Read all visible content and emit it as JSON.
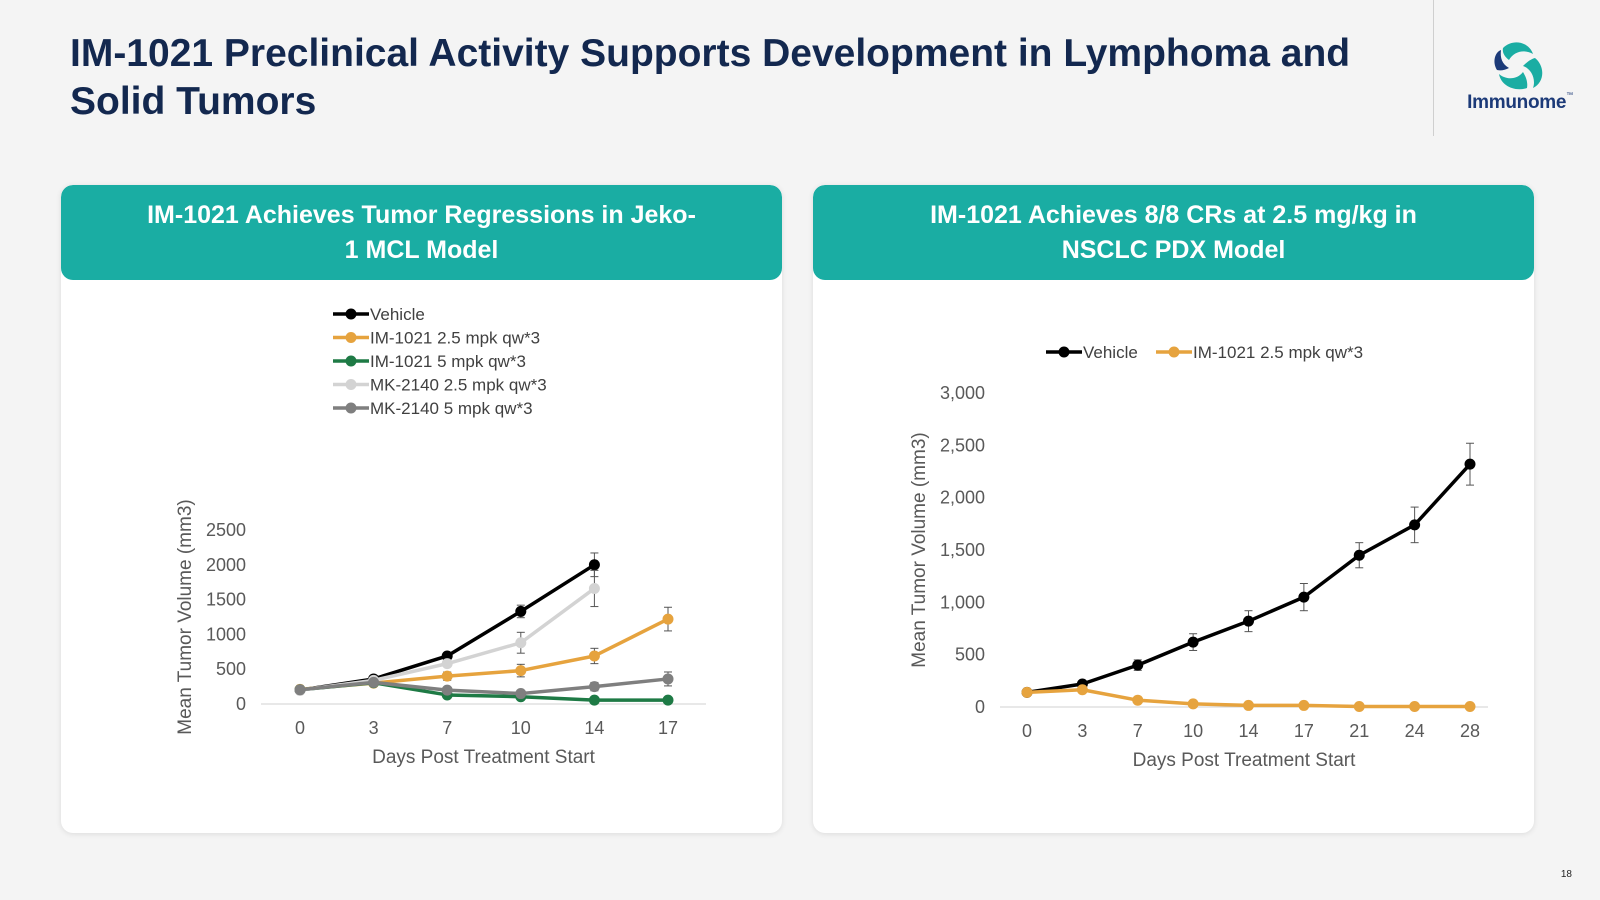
{
  "page": {
    "title": "IM-1021 Preclinical Activity Supports Development in Lymphoma and Solid Tumors",
    "logo_text": "Immunome",
    "logo_tm": "™",
    "page_number": "18"
  },
  "colors": {
    "title": "#13284f",
    "header_bg": "#1aada3",
    "vehicle": "#000000",
    "im1021_2_5": "#e6a33e",
    "im1021_5": "#1e7a45",
    "mk2140_2_5": "#d3d3d3",
    "mk2140_5": "#7f7f7f"
  },
  "left_card": {
    "header": "IM-1021 Achieves Tumor Regressions in Jeko-1 MCL Model"
  },
  "right_card": {
    "header": "IM-1021 Achieves 8/8 CRs at 2.5 mg/kg in NSCLC PDX Model"
  },
  "chart_data": [
    {
      "type": "line",
      "title": "",
      "xlabel": "Days Post Treatment Start",
      "ylabel": "Mean Tumor Volume (mm3)",
      "x": [
        0,
        3,
        7,
        10,
        14,
        17
      ],
      "x_tick_labels": [
        "0",
        "3",
        "7",
        "10",
        "14",
        "17"
      ],
      "x_positioning": "categorical",
      "ylim": [
        0,
        2500
      ],
      "y_ticks": [
        0,
        500,
        1000,
        1500,
        2000,
        2500
      ],
      "y_tick_labels": [
        "0",
        "500",
        "1000",
        "1500",
        "2000",
        "2500"
      ],
      "grid": false,
      "legend_position": "top",
      "series": [
        {
          "name": "Vehicle",
          "color": "#000000",
          "values": [
            200,
            360,
            690,
            1330,
            2000,
            null
          ],
          "errors": [
            15,
            25,
            45,
            90,
            170,
            null
          ]
        },
        {
          "name": "IM-1021 2.5 mpk qw*3",
          "color": "#e6a33e",
          "values": [
            210,
            300,
            400,
            480,
            690,
            1220
          ],
          "errors": [
            15,
            20,
            60,
            90,
            110,
            170
          ]
        },
        {
          "name": "IM-1021 5 mpk qw*3",
          "color": "#1e7a45",
          "values": [
            205,
            305,
            130,
            105,
            55,
            55
          ],
          "errors": [
            10,
            20,
            15,
            15,
            10,
            10
          ]
        },
        {
          "name": "MK-2140 2.5 mpk qw*3",
          "color": "#d3d3d3",
          "values": [
            200,
            340,
            580,
            880,
            1660,
            null
          ],
          "errors": [
            10,
            25,
            40,
            150,
            260,
            null
          ]
        },
        {
          "name": "MK-2140 5 mpk qw*3",
          "color": "#7f7f7f",
          "values": [
            205,
            310,
            200,
            150,
            250,
            360
          ],
          "errors": [
            10,
            15,
            20,
            25,
            60,
            100
          ]
        }
      ]
    },
    {
      "type": "line",
      "title": "",
      "xlabel": "Days Post Treatment Start",
      "ylabel": "Mean Tumor Volume (mm3)",
      "x": [
        0,
        3,
        7,
        10,
        14,
        17,
        21,
        24,
        28
      ],
      "x_tick_labels": [
        "0",
        "3",
        "7",
        "10",
        "14",
        "17",
        "21",
        "24",
        "28"
      ],
      "x_positioning": "categorical",
      "ylim": [
        0,
        3000
      ],
      "y_ticks": [
        0,
        500,
        1000,
        1500,
        2000,
        2500,
        3000
      ],
      "y_tick_labels": [
        "0",
        "500",
        "1,000",
        "1,500",
        "2,000",
        "2,500",
        "3,000"
      ],
      "grid": false,
      "legend_position": "top",
      "series": [
        {
          "name": "Vehicle",
          "color": "#000000",
          "values": [
            140,
            220,
            400,
            620,
            820,
            1050,
            1450,
            1740,
            2320
          ],
          "errors": [
            10,
            20,
            50,
            80,
            100,
            130,
            120,
            170,
            200
          ]
        },
        {
          "name": "IM-1021 2.5 mpk qw*3",
          "color": "#e6a33e",
          "values": [
            140,
            165,
            65,
            30,
            15,
            15,
            5,
            5,
            5
          ],
          "errors": [
            10,
            10,
            8,
            5,
            3,
            3,
            2,
            2,
            2
          ]
        }
      ]
    }
  ]
}
